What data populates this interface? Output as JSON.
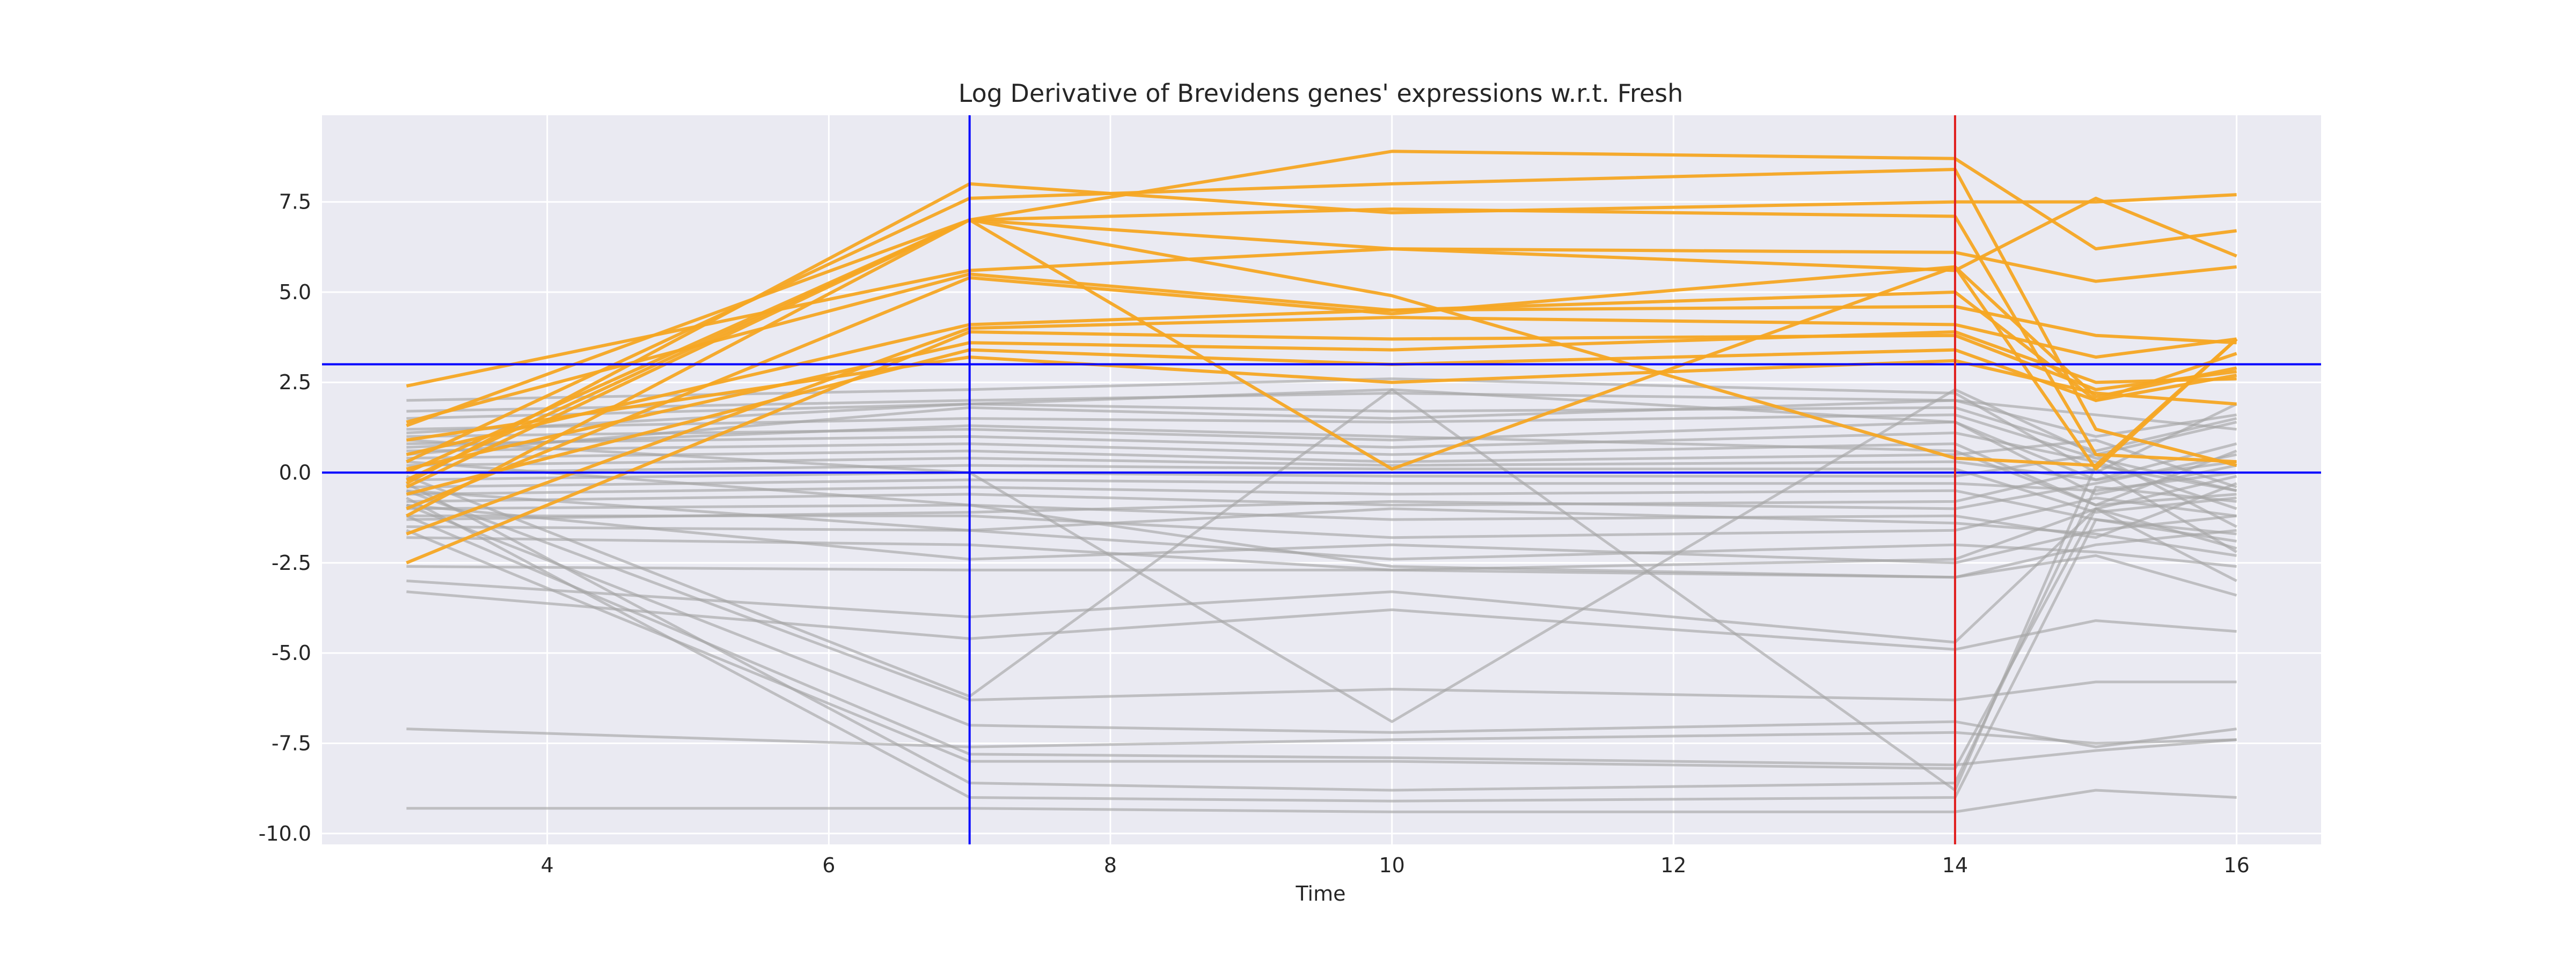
{
  "chart_data": {
    "type": "line",
    "title": "Log Derivative of Brevidens genes' expressions w.r.t. Fresh",
    "xlabel": "Time",
    "ylabel": "",
    "xlim": [
      2.4,
      16.6
    ],
    "ylim": [
      -10.3,
      9.9
    ],
    "x": [
      3,
      7,
      10,
      14,
      15,
      16
    ],
    "xticks": [
      4,
      6,
      8,
      10,
      12,
      14,
      16
    ],
    "yticks": [
      -10.0,
      -7.5,
      -5.0,
      -2.5,
      0.0,
      2.5,
      5.0,
      7.5
    ],
    "grid": true,
    "background_color": "#eaeaf2",
    "grid_color": "#ffffff",
    "highlight_color": "#f5a623",
    "other_color": "#a6a6a6",
    "reference_lines": {
      "horizontal": [
        {
          "y": 0.0,
          "color": "#0000ff"
        },
        {
          "y": 3.0,
          "color": "#0000ff"
        }
      ],
      "vertical": [
        {
          "x": 7,
          "color": "#0000ff"
        },
        {
          "x": 14,
          "color": "#e02020"
        }
      ]
    },
    "highlighted_series": [
      {
        "values": [
          -0.2,
          7.0,
          8.9,
          8.7,
          6.2,
          6.7
        ]
      },
      {
        "values": [
          0.3,
          7.6,
          8.0,
          8.4,
          1.2,
          0.2
        ]
      },
      {
        "values": [
          -0.3,
          8.0,
          7.2,
          7.5,
          7.5,
          7.7
        ]
      },
      {
        "values": [
          0.0,
          7.0,
          7.3,
          7.1,
          0.5,
          0.3
        ]
      },
      {
        "values": [
          -0.4,
          7.0,
          6.2,
          6.1,
          5.3,
          5.7
        ]
      },
      {
        "values": [
          2.4,
          5.6,
          6.2,
          5.6,
          7.6,
          6.0
        ]
      },
      {
        "values": [
          1.3,
          7.0,
          4.9,
          0.4,
          0.2,
          3.7
        ]
      },
      {
        "values": [
          -1.0,
          5.4,
          4.4,
          5.7,
          0.1,
          3.7
        ]
      },
      {
        "values": [
          0.5,
          4.1,
          4.5,
          4.6,
          3.8,
          3.6
        ]
      },
      {
        "values": [
          -1.7,
          4.0,
          4.3,
          4.1,
          3.2,
          3.7
        ]
      },
      {
        "values": [
          -2.5,
          3.9,
          3.7,
          3.8,
          2.3,
          2.8
        ]
      },
      {
        "values": [
          0.1,
          3.6,
          3.4,
          3.9,
          2.5,
          2.6
        ]
      },
      {
        "values": [
          -0.6,
          3.4,
          3.0,
          3.4,
          2.0,
          2.7
        ]
      },
      {
        "values": [
          0.9,
          3.2,
          2.5,
          3.1,
          2.2,
          1.9
        ]
      },
      {
        "values": [
          -1.2,
          7.0,
          0.1,
          5.7,
          2.1,
          2.9
        ]
      },
      {
        "values": [
          1.4,
          5.5,
          4.5,
          5.0,
          2.0,
          3.3
        ]
      }
    ],
    "other_series": [
      {
        "values": [
          2.0,
          2.3,
          2.6,
          2.2,
          0.0,
          1.9
        ]
      },
      {
        "values": [
          1.7,
          2.0,
          2.2,
          2.0,
          1.6,
          1.2
        ]
      },
      {
        "values": [
          1.5,
          1.9,
          1.7,
          1.8,
          0.6,
          1.5
        ]
      },
      {
        "values": [
          1.2,
          1.5,
          1.4,
          1.6,
          0.4,
          -0.5
        ]
      },
      {
        "values": [
          1.0,
          1.2,
          0.9,
          1.4,
          -0.6,
          0.2
        ]
      },
      {
        "values": [
          0.8,
          1.0,
          0.7,
          1.1,
          0.3,
          -1.0
        ]
      },
      {
        "values": [
          0.6,
          0.8,
          0.5,
          0.8,
          -0.9,
          0.6
        ]
      },
      {
        "values": [
          0.4,
          0.6,
          0.3,
          0.5,
          0.9,
          -0.4
        ]
      },
      {
        "values": [
          0.2,
          0.4,
          0.2,
          0.3,
          -0.2,
          0.8
        ]
      },
      {
        "values": [
          0.0,
          0.2,
          0.1,
          0.1,
          -1.1,
          -0.7
        ]
      },
      {
        "values": [
          -0.2,
          0.0,
          -0.1,
          -0.1,
          0.5,
          -1.5
        ]
      },
      {
        "values": [
          -0.4,
          -0.2,
          -0.3,
          -0.3,
          -0.5,
          0.0
        ]
      },
      {
        "values": [
          -0.6,
          -0.4,
          -0.6,
          -0.5,
          -1.3,
          -1.9
        ]
      },
      {
        "values": [
          -0.8,
          -0.6,
          -0.9,
          -0.8,
          0.1,
          -2.2
        ]
      },
      {
        "values": [
          -1.0,
          -0.9,
          -1.3,
          -1.2,
          -1.8,
          -0.3
        ]
      },
      {
        "values": [
          -1.2,
          -1.2,
          -1.8,
          -1.6,
          -0.7,
          -1.2
        ]
      },
      {
        "values": [
          -1.5,
          -1.6,
          -2.4,
          -2.0,
          -2.2,
          -2.6
        ]
      },
      {
        "values": [
          -1.8,
          -2.0,
          -2.7,
          -2.4,
          -1.0,
          -3.0
        ]
      },
      {
        "values": [
          -2.6,
          -2.7,
          -2.7,
          -2.9,
          -2.3,
          -3.4
        ]
      },
      {
        "values": [
          -3.0,
          -4.0,
          -3.3,
          -4.7,
          -1.0,
          -2.1
        ]
      },
      {
        "values": [
          -3.3,
          -4.6,
          -3.8,
          -4.9,
          -4.1,
          -4.4
        ]
      },
      {
        "values": [
          -0.5,
          -6.3,
          -6.0,
          -6.3,
          -5.8,
          -5.8
        ]
      },
      {
        "values": [
          -0.9,
          -7.0,
          -7.2,
          -6.9,
          -7.6,
          -7.1
        ]
      },
      {
        "values": [
          -1.2,
          -7.8,
          -7.9,
          -8.1,
          -7.7,
          -7.4
        ]
      },
      {
        "values": [
          -1.6,
          -8.0,
          -8.0,
          -8.2,
          -1.0,
          -0.1
        ]
      },
      {
        "values": [
          -0.3,
          -8.6,
          -8.8,
          -8.6,
          -0.4,
          -0.8
        ]
      },
      {
        "values": [
          -0.7,
          -9.0,
          -9.1,
          -9.0,
          -1.3,
          -1.7
        ]
      },
      {
        "values": [
          -7.1,
          -7.6,
          -7.4,
          -7.2,
          -7.5,
          -7.4
        ]
      },
      {
        "values": [
          -9.3,
          -9.3,
          -9.4,
          -9.4,
          -8.8,
          -9.0
        ]
      },
      {
        "values": [
          1.1,
          1.9,
          2.3,
          1.4,
          -0.2,
          0.3
        ]
      },
      {
        "values": [
          0.3,
          -0.9,
          -2.6,
          -2.9,
          -2.0,
          -1.6
        ]
      },
      {
        "values": [
          0.9,
          0.0,
          -6.9,
          2.3,
          0.5,
          1.4
        ]
      },
      {
        "values": [
          -0.1,
          -6.2,
          2.3,
          -8.8,
          0.2,
          -0.5
        ]
      },
      {
        "values": [
          -0.5,
          -1.6,
          -1.0,
          -1.4,
          -1.7,
          -2.3
        ]
      },
      {
        "values": [
          0.7,
          1.3,
          1.0,
          0.6,
          -0.9,
          -0.6
        ]
      },
      {
        "values": [
          -1.3,
          -1.1,
          -0.8,
          -1.0,
          -0.3,
          0.5
        ]
      },
      {
        "values": [
          0.5,
          1.8,
          1.5,
          2.0,
          1.0,
          1.6
        ]
      },
      {
        "values": [
          -0.9,
          -2.4,
          -2.0,
          -2.5,
          -1.6,
          -1.2
        ]
      }
    ]
  }
}
